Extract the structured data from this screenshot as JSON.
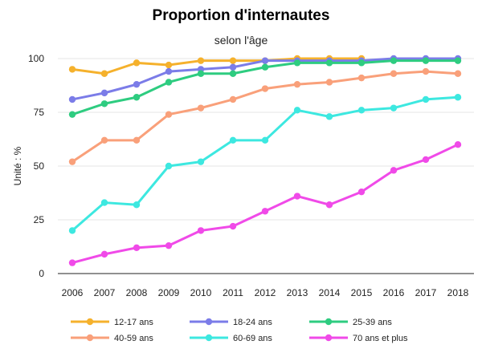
{
  "chart_data": {
    "type": "line",
    "title": "Proportion d'internautes",
    "subtitle": "selon l'âge",
    "xlabel": "",
    "ylabel": "Unité : %",
    "ylim": [
      0,
      100
    ],
    "yticks": [
      0,
      25,
      50,
      75,
      100
    ],
    "grid": "horizontal",
    "legend_position": "bottom",
    "categories": [
      "2006",
      "2007",
      "2008",
      "2009",
      "2010",
      "2011",
      "2012",
      "2013",
      "2014",
      "2015",
      "2016",
      "2017",
      "2018"
    ],
    "series": [
      {
        "name": "12-17 ans",
        "color": "#f5b12c",
        "values": [
          95,
          93,
          98,
          97,
          99,
          99,
          99,
          100,
          100,
          100,
          null,
          null,
          null
        ]
      },
      {
        "name": "18-24 ans",
        "color": "#7b7ce8",
        "values": [
          81,
          84,
          88,
          94,
          95,
          96,
          99,
          99,
          99,
          99,
          100,
          100,
          100
        ]
      },
      {
        "name": "25-39 ans",
        "color": "#2ecc80",
        "values": [
          74,
          79,
          82,
          89,
          93,
          93,
          96,
          98,
          98,
          98,
          99,
          99,
          99
        ]
      },
      {
        "name": "40-59 ans",
        "color": "#f9a07a",
        "values": [
          52,
          62,
          62,
          74,
          77,
          81,
          86,
          88,
          89,
          91,
          93,
          94,
          93
        ]
      },
      {
        "name": "60-69 ans",
        "color": "#3de8e0",
        "values": [
          20,
          33,
          32,
          50,
          52,
          62,
          62,
          76,
          73,
          76,
          77,
          81,
          82
        ]
      },
      {
        "name": "70 ans et plus",
        "color": "#f04ae8",
        "values": [
          5,
          9,
          12,
          13,
          20,
          22,
          29,
          36,
          32,
          38,
          48,
          53,
          60
        ]
      }
    ]
  }
}
